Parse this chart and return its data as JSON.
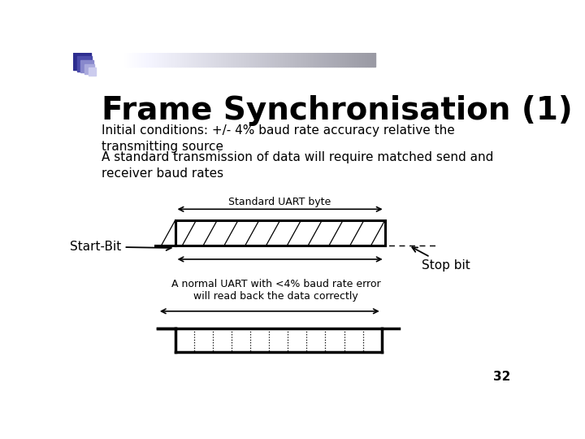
{
  "title": "Frame Synchronisation (1)",
  "subtitle1": "Initial conditions: +/- 4% baud rate accuracy relative the\ntransmitting source",
  "subtitle2": "A standard transmission of data will require matched send and\nreceiver baud rates",
  "label_standard_uart": "Standard UART byte",
  "label_start_bit": "Start-Bit",
  "label_stop_bit": "Stop bit",
  "label_normal_uart": "A normal UART with <4% baud rate error\nwill read back the data correctly",
  "page_number": "32",
  "bg_color": "#ffffff",
  "text_color": "#000000",
  "title_fontsize": 28,
  "body_fontsize": 11,
  "diagram_fontsize": 9,
  "corner_colors": [
    "#2d2d8f",
    "#4a4aaa",
    "#8888cc",
    "#aaaadd",
    "#ccccee"
  ]
}
